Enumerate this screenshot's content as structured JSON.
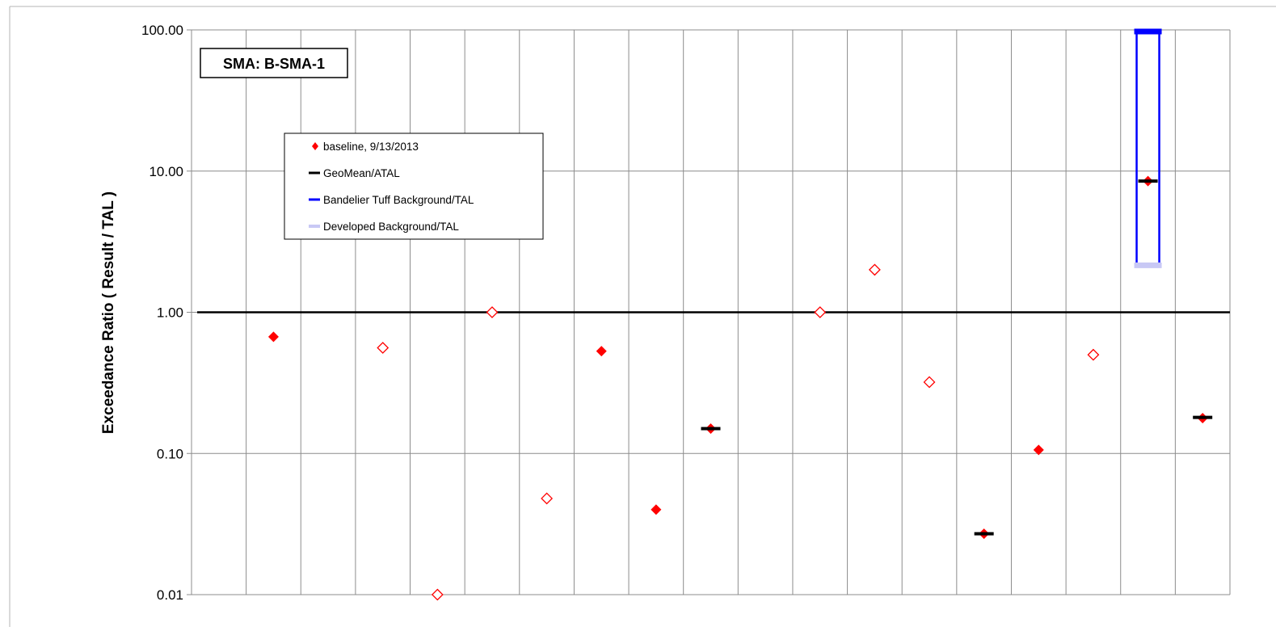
{
  "chart_data": {
    "type": "scatter",
    "title": "",
    "xlabel": "",
    "ylabel": "Exceedance Ratio  ( Result / TAL )",
    "y_scale": "log",
    "ylim": [
      0.01,
      100
    ],
    "y_ticks": [
      "0.01",
      "0.10",
      "1.00",
      "10.00",
      "100.00"
    ],
    "y_tick_values": [
      0.01,
      0.1,
      1,
      10,
      100
    ],
    "reference_line": 1.0,
    "grid": true,
    "category_count": 19,
    "sma_label": "SMA: B-SMA-1",
    "legend_position": "upper-left",
    "legend": [
      {
        "key": "baseline",
        "label": "baseline, 9/13/2013",
        "marker": "diamond",
        "color": "#ff0000"
      },
      {
        "key": "geomean",
        "label": "GeoMean/ATAL",
        "marker": "dash",
        "color": "#000000"
      },
      {
        "key": "bandelier",
        "label": "Bandelier Tuff Background/TAL",
        "marker": "dash",
        "color": "#0000ff"
      },
      {
        "key": "developed",
        "label": "Developed Background/TAL",
        "marker": "dash",
        "color": "#c8c8f5"
      }
    ],
    "series": [
      {
        "name": "baseline, 9/13/2013",
        "points": [
          {
            "x": 1,
            "y": 0.67,
            "filled": true
          },
          {
            "x": 3,
            "y": 0.56,
            "filled": false
          },
          {
            "x": 4,
            "y": 0.01,
            "filled": false
          },
          {
            "x": 5,
            "y": 1.0,
            "filled": false
          },
          {
            "x": 6,
            "y": 0.048,
            "filled": false
          },
          {
            "x": 7,
            "y": 0.53,
            "filled": true
          },
          {
            "x": 8,
            "y": 0.04,
            "filled": true
          },
          {
            "x": 9,
            "y": 0.15,
            "filled": true
          },
          {
            "x": 11,
            "y": 1.0,
            "filled": false
          },
          {
            "x": 12,
            "y": 2.0,
            "filled": false
          },
          {
            "x": 13,
            "y": 0.32,
            "filled": false
          },
          {
            "x": 14,
            "y": 0.027,
            "filled": true
          },
          {
            "x": 15,
            "y": 0.106,
            "filled": true
          },
          {
            "x": 16,
            "y": 0.5,
            "filled": false
          },
          {
            "x": 17,
            "y": 8.5,
            "filled": true
          },
          {
            "x": 18,
            "y": 0.178,
            "filled": true
          }
        ]
      },
      {
        "name": "GeoMean/ATAL",
        "points": [
          {
            "x": 9,
            "y": 0.15
          },
          {
            "x": 14,
            "y": 0.027
          },
          {
            "x": 17,
            "y": 8.5
          },
          {
            "x": 18,
            "y": 0.18
          }
        ]
      },
      {
        "name": "Bandelier Tuff Background/TAL",
        "points": [
          {
            "x": 17,
            "y": 100
          }
        ]
      },
      {
        "name": "Developed Background/TAL",
        "points": [
          {
            "x": 17,
            "y": 2.15
          }
        ]
      }
    ],
    "background_range": {
      "x": 17,
      "low": 2.15,
      "high": 100
    }
  },
  "colors": {
    "baseline": "#ff0000",
    "geomean": "#000000",
    "bandelier": "#0000ff",
    "developed": "#c8c8f5",
    "grid": "#8c8c8c",
    "reference": "#000000"
  }
}
